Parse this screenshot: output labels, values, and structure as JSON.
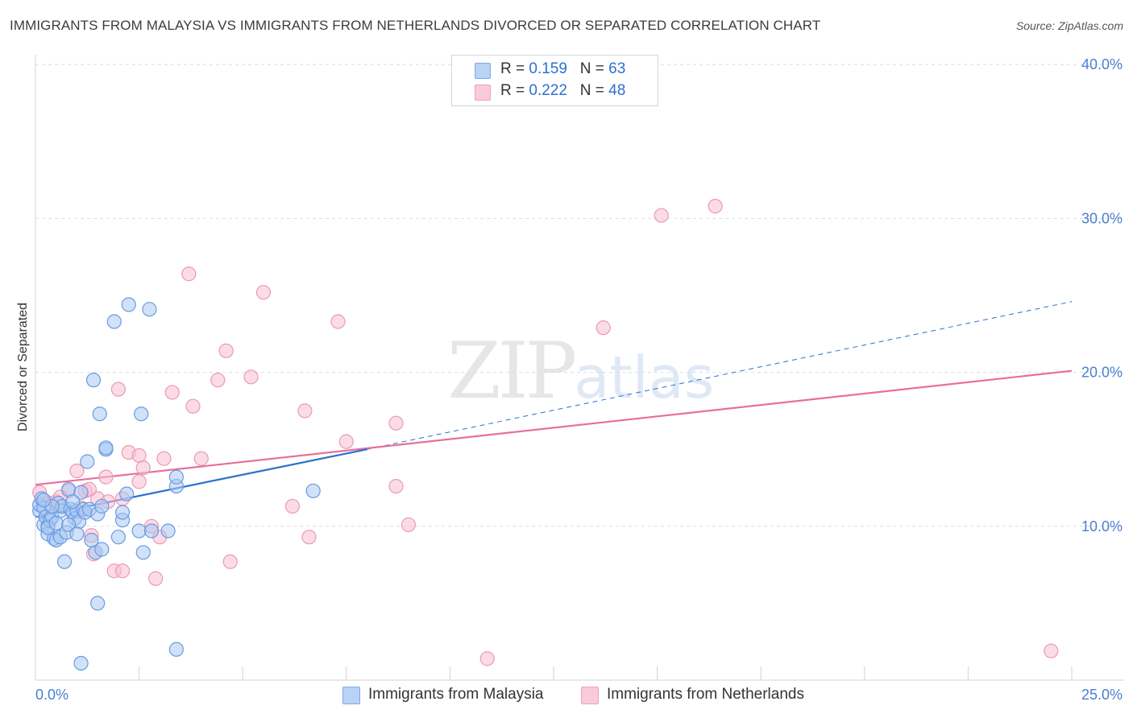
{
  "header": {
    "title": "IMMIGRANTS FROM MALAYSIA VS IMMIGRANTS FROM NETHERLANDS DIVORCED OR SEPARATED CORRELATION CHART",
    "source": "Source: ZipAtlas.com"
  },
  "watermark": {
    "zip": "ZIP",
    "atlas": "atlas"
  },
  "legend_top": {
    "rows": [
      {
        "r_label": "R = ",
        "r_value": "0.159",
        "n_label": "N = ",
        "n_value": "63"
      },
      {
        "r_label": "R = ",
        "r_value": "0.222",
        "n_label": "N = ",
        "n_value": "48"
      }
    ]
  },
  "legend_bottom": {
    "malaysia": "Immigrants from Malaysia",
    "netherlands": "Immigrants from Netherlands"
  },
  "colors": {
    "malaysia_fill": "#a9c8f3",
    "malaysia_stroke": "#6a9be0",
    "malaysia_line": "#2b6fd0",
    "netherlands_fill": "#f7bfd0",
    "netherlands_stroke": "#ec98b4",
    "netherlands_line": "#e76f9c",
    "grid": "#d9dde3",
    "tick_text": "#4a7fd0"
  },
  "chart_data": {
    "type": "scatter",
    "title": "IMMIGRANTS FROM MALAYSIA VS IMMIGRANTS FROM NETHERLANDS DIVORCED OR SEPARATED CORRELATION CHART",
    "xlabel": "",
    "ylabel": "Divorced or Separated",
    "xlim": [
      0,
      25
    ],
    "ylim": [
      0,
      40
    ],
    "x_tick_labels": [
      "0.0%",
      "25.0%"
    ],
    "y_ticks": [
      10,
      20,
      30,
      40
    ],
    "y_tick_labels": [
      "10.0%",
      "20.0%",
      "30.0%",
      "40.0%"
    ],
    "series": [
      {
        "name": "Immigrants from Malaysia",
        "R": 0.159,
        "N": 63,
        "trend": {
          "x0": 0,
          "y0": 10.6,
          "x1": 8.0,
          "y1": 15.0,
          "dash_to_x": 25,
          "dash_to_y": 24.6
        },
        "points": [
          [
            0.1,
            11.0
          ],
          [
            0.1,
            11.4
          ],
          [
            0.15,
            11.8
          ],
          [
            0.2,
            10.1
          ],
          [
            0.2,
            11.2
          ],
          [
            0.25,
            10.6
          ],
          [
            0.3,
            10.0
          ],
          [
            0.3,
            9.5
          ],
          [
            0.35,
            10.4
          ],
          [
            0.4,
            10.6
          ],
          [
            0.45,
            9.2
          ],
          [
            0.5,
            9.1
          ],
          [
            0.55,
            11.5
          ],
          [
            0.6,
            11.0
          ],
          [
            0.6,
            9.3
          ],
          [
            0.65,
            11.3
          ],
          [
            0.7,
            7.7
          ],
          [
            0.75,
            9.6
          ],
          [
            0.8,
            12.4
          ],
          [
            0.85,
            11.1
          ],
          [
            0.9,
            10.9
          ],
          [
            0.95,
            10.5
          ],
          [
            1.0,
            11.0
          ],
          [
            1.05,
            10.3
          ],
          [
            1.1,
            12.2
          ],
          [
            1.15,
            11.1
          ],
          [
            1.2,
            10.9
          ],
          [
            1.25,
            14.2
          ],
          [
            1.3,
            11.1
          ],
          [
            1.35,
            9.1
          ],
          [
            1.4,
            19.5
          ],
          [
            1.45,
            8.3
          ],
          [
            1.5,
            10.8
          ],
          [
            1.55,
            17.3
          ],
          [
            1.6,
            8.5
          ],
          [
            1.7,
            15.0
          ],
          [
            1.7,
            15.1
          ],
          [
            1.9,
            23.3
          ],
          [
            2.0,
            9.3
          ],
          [
            2.1,
            10.4
          ],
          [
            2.1,
            10.9
          ],
          [
            2.2,
            12.1
          ],
          [
            2.25,
            24.4
          ],
          [
            2.5,
            9.7
          ],
          [
            2.55,
            17.3
          ],
          [
            2.6,
            8.3
          ],
          [
            2.75,
            24.1
          ],
          [
            2.8,
            9.7
          ],
          [
            3.2,
            9.7
          ],
          [
            3.4,
            12.6
          ],
          [
            3.4,
            13.2
          ],
          [
            6.7,
            12.3
          ],
          [
            1.5,
            5.0
          ],
          [
            1.1,
            1.1
          ],
          [
            3.4,
            2.0
          ],
          [
            0.3,
            9.9
          ],
          [
            0.5,
            10.2
          ],
          [
            0.9,
            11.6
          ],
          [
            1.6,
            11.3
          ],
          [
            0.4,
            11.3
          ],
          [
            0.8,
            10.1
          ],
          [
            1.0,
            9.5
          ],
          [
            0.2,
            11.7
          ]
        ]
      },
      {
        "name": "Immigrants from Netherlands",
        "R": 0.222,
        "N": 48,
        "trend": {
          "x0": 0,
          "y0": 12.7,
          "x1": 25,
          "y1": 20.1
        },
        "points": [
          [
            0.1,
            12.2
          ],
          [
            0.3,
            11.5
          ],
          [
            0.5,
            11.6
          ],
          [
            0.8,
            12.3
          ],
          [
            1.0,
            13.6
          ],
          [
            1.1,
            11.2
          ],
          [
            1.2,
            12.3
          ],
          [
            1.35,
            9.4
          ],
          [
            1.4,
            8.2
          ],
          [
            1.5,
            11.8
          ],
          [
            1.7,
            13.2
          ],
          [
            1.75,
            11.6
          ],
          [
            1.9,
            7.1
          ],
          [
            2.0,
            18.9
          ],
          [
            2.1,
            7.1
          ],
          [
            2.1,
            11.8
          ],
          [
            2.25,
            14.8
          ],
          [
            2.5,
            12.9
          ],
          [
            2.5,
            14.6
          ],
          [
            2.6,
            13.8
          ],
          [
            2.8,
            10.0
          ],
          [
            2.9,
            6.6
          ],
          [
            3.0,
            9.3
          ],
          [
            3.1,
            14.4
          ],
          [
            3.3,
            18.7
          ],
          [
            3.7,
            26.4
          ],
          [
            3.8,
            17.8
          ],
          [
            4.0,
            14.4
          ],
          [
            4.4,
            19.5
          ],
          [
            4.6,
            21.4
          ],
          [
            4.7,
            7.7
          ],
          [
            5.2,
            19.7
          ],
          [
            5.5,
            25.2
          ],
          [
            6.2,
            11.3
          ],
          [
            6.5,
            17.5
          ],
          [
            6.6,
            9.3
          ],
          [
            7.3,
            23.3
          ],
          [
            7.5,
            15.5
          ],
          [
            8.7,
            12.6
          ],
          [
            8.7,
            16.7
          ],
          [
            9.0,
            10.1
          ],
          [
            10.9,
            1.4
          ],
          [
            13.7,
            22.9
          ],
          [
            15.1,
            30.2
          ],
          [
            16.4,
            30.8
          ],
          [
            24.5,
            1.9
          ],
          [
            0.6,
            11.9
          ],
          [
            1.3,
            12.4
          ]
        ]
      }
    ]
  }
}
